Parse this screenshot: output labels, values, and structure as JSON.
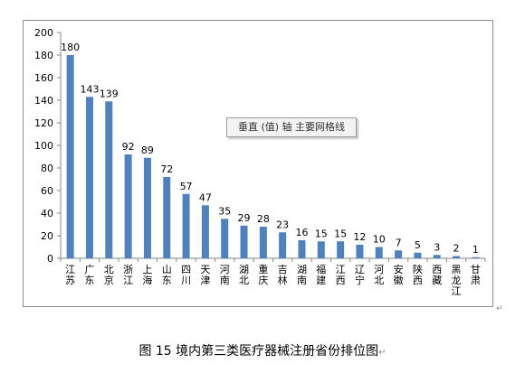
{
  "chart_data": {
    "type": "bar",
    "categories": [
      "江苏",
      "广东",
      "北京",
      "浙江",
      "上海",
      "山东",
      "四川",
      "天津",
      "河南",
      "湖北",
      "重庆",
      "吉林",
      "湖南",
      "福建",
      "江西",
      "辽宁",
      "河北",
      "安徽",
      "陕西",
      "西藏",
      "黑龙江",
      "甘肃"
    ],
    "values": [
      180,
      143,
      139,
      92,
      89,
      72,
      57,
      47,
      35,
      29,
      28,
      23,
      16,
      15,
      15,
      12,
      10,
      7,
      5,
      3,
      2,
      1
    ],
    "yticks": [
      "0",
      "20",
      "40",
      "60",
      "80",
      "100",
      "120",
      "140",
      "160",
      "180",
      "200"
    ],
    "ylim": [
      0,
      200
    ],
    "grid": false,
    "bar_color": "#4f81bd",
    "title": "",
    "xlabel": "",
    "ylabel": ""
  },
  "tooltip_text": "垂直 (值) 轴 主要网格线",
  "caption": "图 15  境内第三类医疗器械注册省份排位图",
  "paragraph_mark": "↵"
}
